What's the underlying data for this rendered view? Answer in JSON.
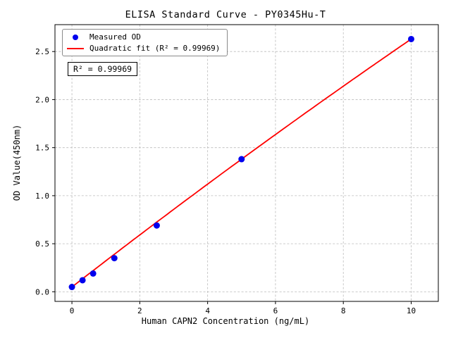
{
  "chart_data": {
    "type": "scatter",
    "title": "ELISA Standard Curve - PY0345Hu-T",
    "xlabel": "Human CAPN2 Concentration (ng/mL)",
    "ylabel": "OD Value(450nm)",
    "xlim": [
      -0.5,
      10.8
    ],
    "ylim": [
      -0.1,
      2.78
    ],
    "grid": true,
    "xticks": {
      "values": [
        0,
        2,
        4,
        6,
        8,
        10
      ],
      "labels": [
        "0",
        "2",
        "4",
        "6",
        "8",
        "10"
      ]
    },
    "yticks": {
      "values": [
        0.0,
        0.5,
        1.0,
        1.5,
        2.0,
        2.5
      ],
      "labels": [
        "0.0",
        "0.5",
        "1.0",
        "1.5",
        "2.0",
        "2.5"
      ]
    },
    "series": [
      {
        "name": "Measured OD",
        "kind": "scatter",
        "color": "#0000ee",
        "points": [
          [
            0,
            0.05
          ],
          [
            0.3125,
            0.12
          ],
          [
            0.625,
            0.19
          ],
          [
            1.25,
            0.35
          ],
          [
            2.5,
            0.69
          ],
          [
            5,
            1.38
          ],
          [
            10,
            2.63
          ]
        ]
      },
      {
        "name": "Quadratic fit (R² = 0.99969)",
        "kind": "fit-line",
        "color": "#ff0000",
        "fit": {
          "model": "quadratic",
          "coeffs": {
            "a": 0.05,
            "b": 0.274,
            "c": -0.0016
          },
          "x_range": [
            0,
            10
          ]
        }
      }
    ],
    "legend": {
      "position": "upper left",
      "entries": [
        "Measured OD",
        "Quadratic fit (R² = 0.99969)"
      ]
    },
    "annotation": "R² = 0.99969",
    "r_squared": 0.99969,
    "colors": {
      "marker": "#0000ee",
      "fit_line": "#ff0000"
    }
  }
}
